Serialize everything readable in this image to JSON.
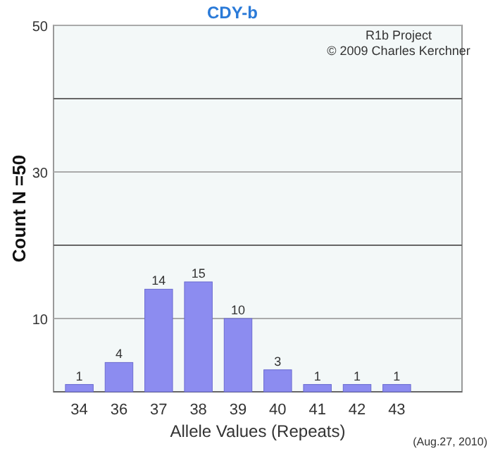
{
  "chart_data": {
    "type": "bar",
    "title": "CDY-b",
    "xlabel": "Allele Values (Repeats)",
    "ylabel": "Count N =50",
    "categories": [
      "34",
      "36",
      "37",
      "38",
      "39",
      "40",
      "41",
      "42",
      "43"
    ],
    "values": [
      1,
      4,
      14,
      15,
      10,
      3,
      1,
      1,
      1
    ],
    "color": "#8c8cf0",
    "ylim": [
      0,
      50
    ],
    "yticks": [
      {
        "value": 0,
        "label": null
      },
      10,
      {
        "value": 20,
        "label": null
      },
      30,
      {
        "value": 40,
        "label": null
      },
      50
    ],
    "grid": "y",
    "data_labels": true,
    "annotations": [
      "R1b Project",
      "© 2009 Charles Kerchner",
      "(Aug.27, 2010)"
    ]
  }
}
